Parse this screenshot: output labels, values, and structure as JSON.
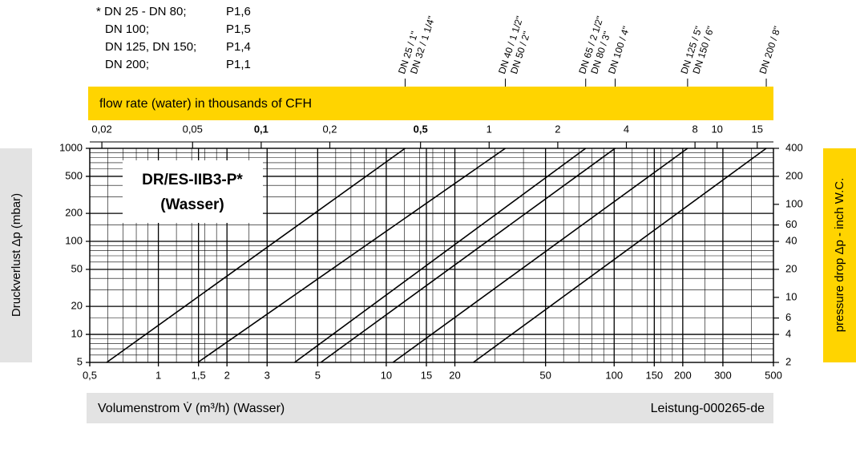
{
  "chart_data": {
    "type": "line",
    "title": "DR/ES-IIB3-P*",
    "subtitle": "(Wasser)",
    "note": [
      [
        "* DN 25 - DN 80;",
        "P1,6"
      ],
      [
        "DN 100;",
        "P1,5"
      ],
      [
        "DN 125, DN 150;",
        "P1,4"
      ],
      [
        "DN 200;",
        "P1,1"
      ]
    ],
    "x2label": "flow rate (water) in thousands of CFH",
    "xlabel": "Volumenstrom V̇ (m³/h) (Wasser)",
    "ylabel": "Druckverlust Δp (mbar)",
    "y2label": "pressure drop Δp - inch W.C.",
    "footer": "Leistung-000265-de",
    "log_x": true,
    "log_y": true,
    "grid": true,
    "xlim": [
      0.5,
      500
    ],
    "xticks": [
      {
        "value": 0.5,
        "label": "0,5"
      },
      1,
      {
        "value": 1.5,
        "label": "1,5"
      },
      2,
      3,
      5,
      10,
      15,
      20,
      50,
      100,
      150,
      200,
      300,
      500
    ],
    "xminor": [
      0.6,
      0.7,
      0.8,
      0.9,
      1.2,
      1.4,
      1.6,
      1.8,
      2.5,
      4,
      6,
      7,
      8,
      9,
      12,
      14,
      16,
      18,
      25,
      30,
      40,
      60,
      70,
      80,
      90,
      120,
      140,
      160,
      180,
      250,
      400
    ],
    "x2lim": [
      0.0177,
      17.67
    ],
    "x2ticks": [
      {
        "value": 0.02,
        "label": "0,02"
      },
      {
        "value": 0.05,
        "label": "0,05"
      },
      {
        "value": 0.1,
        "label": "0,1"
      },
      {
        "value": 0.2,
        "label": "0,2"
      },
      {
        "value": 0.5,
        "label": "0,5"
      },
      1,
      2,
      4,
      8,
      10,
      15
    ],
    "ylim": [
      5,
      1000
    ],
    "yticks": [
      1000,
      500,
      200,
      100,
      50,
      20,
      10,
      5
    ],
    "yminor": [
      6,
      7,
      8,
      9,
      15,
      30,
      40,
      60,
      70,
      80,
      90,
      150,
      300,
      400,
      600,
      700,
      800,
      900
    ],
    "y2lim": [
      2,
      400
    ],
    "y2ticks": [
      400,
      200,
      100,
      60,
      40,
      20,
      10,
      6,
      4,
      2
    ],
    "series": [
      {
        "color": "#000000",
        "x": [
          0.593,
          12.1
        ],
        "values": [
          5,
          1000
        ],
        "labels": [
          "DN 25 / 1\"",
          "DN 32 / 1 1/4\""
        ]
      },
      {
        "color": "#000000",
        "x": [
          1.49,
          33.3
        ],
        "values": [
          5,
          1000
        ],
        "labels": [
          "DN 40 / 1 1/2\"",
          "DN 50 / 2\""
        ]
      },
      {
        "color": "#000000",
        "x": [
          3.96,
          75.0
        ],
        "values": [
          5,
          1000
        ],
        "labels": [
          "DN 65 / 2 1/2\"",
          "DN 80 / 3\""
        ]
      },
      {
        "color": "#000000",
        "x": [
          5.16,
          101
        ],
        "values": [
          5,
          1000
        ],
        "labels": [
          "DN 100 / 4\""
        ]
      },
      {
        "color": "#000000",
        "x": [
          10.7,
          210
        ],
        "values": [
          5,
          1000
        ],
        "labels": [
          "DN 125 / 5\"",
          "DN 150 / 6\""
        ]
      },
      {
        "color": "#000000",
        "x": [
          24.1,
          465
        ],
        "values": [
          5,
          1000
        ],
        "labels": [
          "DN 200 / 8\""
        ]
      }
    ]
  }
}
